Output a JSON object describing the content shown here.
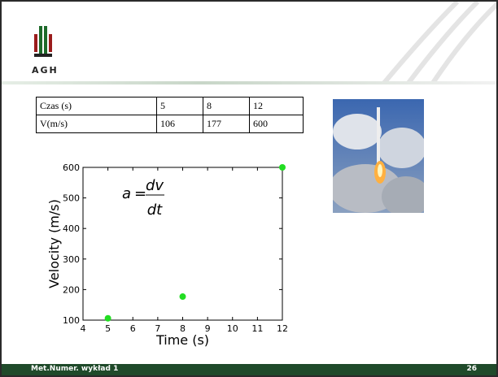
{
  "header": {
    "logo": "AGH"
  },
  "table": {
    "rows": [
      [
        "Czas (s)",
        "5",
        "8",
        "12"
      ],
      [
        "V(m/s)",
        "106",
        "177",
        "600"
      ]
    ]
  },
  "chart_data": {
    "type": "scatter",
    "xlabel": "Time (s)",
    "ylabel": "Velocity (m/s)",
    "x": [
      5,
      8,
      12
    ],
    "values": [
      106,
      177,
      600
    ],
    "color": "#22dd22",
    "xlim": [
      4,
      12
    ],
    "ylim": [
      100,
      600
    ],
    "xticks": [
      4,
      5,
      6,
      7,
      8,
      9,
      10,
      11,
      12
    ],
    "yticks": [
      100,
      200,
      300,
      400,
      500,
      600
    ],
    "annotation": {
      "lhs": "a",
      "eq": "=",
      "numerator": "dv",
      "denominator": "dt"
    }
  },
  "footer": {
    "left": "Met.Numer. wykład 1",
    "right": "26"
  }
}
